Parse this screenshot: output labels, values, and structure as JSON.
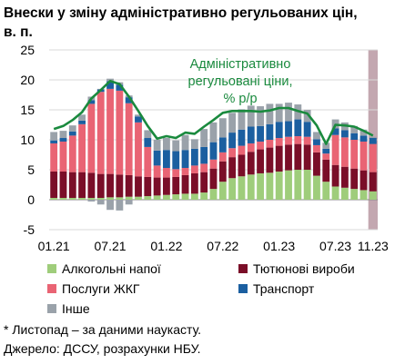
{
  "title_line1": "Внески у зміну адміністративно регульованих цін,",
  "title_line2": "в. п.",
  "footnote1": "* Листопад – за даними наукасту.",
  "footnote2": "Джерело: ДССУ, розрахунки НБУ.",
  "chart_data": {
    "type": "bar",
    "title": "Внески у зміну адміністративно регульованих цін, в. п.",
    "ylim": [
      -5,
      25
    ],
    "yticks": [
      -5,
      0,
      5,
      10,
      15,
      20,
      25
    ],
    "x": [
      "01.21",
      "02.21",
      "03.21",
      "04.21",
      "05.21",
      "06.21",
      "07.21",
      "08.21",
      "09.21",
      "10.21",
      "11.21",
      "12.21",
      "01.22",
      "02.22",
      "03.22",
      "04.22",
      "05.22",
      "06.22",
      "07.22",
      "08.22",
      "09.22",
      "10.22",
      "11.22",
      "12.22",
      "01.23",
      "02.23",
      "03.23",
      "04.23",
      "05.23",
      "06.23",
      "07.23",
      "08.23",
      "09.23",
      "10.23",
      "11.23"
    ],
    "xticklabels": [
      {
        "index": 0,
        "label": "01.21"
      },
      {
        "index": 6,
        "label": "07.21"
      },
      {
        "index": 12,
        "label": "01.22"
      },
      {
        "index": 18,
        "label": "07.22"
      },
      {
        "index": 24,
        "label": "01.23"
      },
      {
        "index": 30,
        "label": "07.23"
      },
      {
        "index": 34,
        "label": "11.23"
      }
    ],
    "nowcast_index": 34,
    "annotation": [
      "Адміністративно",
      "регульовані ціни,",
      "% р/р"
    ],
    "series": [
      {
        "name": "Алкогольні напої",
        "color": "#9fcd7b",
        "values": [
          0.3,
          0.3,
          0.3,
          0.3,
          0.3,
          0.3,
          0.4,
          0.4,
          0.5,
          0.5,
          0.6,
          0.7,
          0.8,
          0.9,
          1.0,
          1.0,
          1.2,
          1.8,
          3.0,
          3.6,
          3.9,
          4.2,
          4.4,
          4.5,
          4.7,
          4.9,
          5.0,
          5.0,
          4.0,
          3.0,
          2.2,
          2.0,
          1.8,
          1.6,
          1.4
        ]
      },
      {
        "name": "Тютюнові вироби",
        "color": "#7a0e28",
        "values": [
          4.4,
          4.4,
          4.3,
          4.3,
          4.2,
          4.0,
          3.9,
          3.8,
          3.6,
          3.4,
          3.2,
          3.0,
          2.9,
          2.9,
          3.1,
          3.4,
          3.4,
          3.4,
          3.4,
          3.5,
          3.6,
          3.8,
          4.0,
          4.2,
          4.3,
          4.3,
          4.3,
          4.2,
          3.9,
          3.7,
          3.6,
          3.5,
          3.4,
          3.3,
          3.2
        ]
      },
      {
        "name": "Послуги ЖКГ",
        "color": "#e96474",
        "values": [
          4.7,
          5.0,
          6.1,
          8.0,
          11.5,
          13.7,
          14.2,
          14.0,
          12.0,
          9.0,
          5.0,
          2.0,
          1.6,
          1.3,
          1.2,
          1.3,
          1.4,
          1.5,
          1.5,
          1.5,
          1.5,
          1.4,
          1.3,
          1.3,
          1.3,
          1.3,
          1.3,
          1.3,
          1.2,
          1.0,
          5.0,
          4.9,
          4.8,
          4.8,
          4.7
        ]
      },
      {
        "name": "Транспорт",
        "color": "#1b5fa0",
        "values": [
          0.5,
          0.6,
          0.7,
          0.6,
          0.6,
          0.4,
          1.3,
          1.0,
          1.0,
          1.0,
          1.5,
          2.5,
          3.0,
          3.0,
          3.0,
          2.8,
          2.8,
          2.9,
          2.5,
          2.6,
          2.7,
          2.8,
          2.6,
          2.6,
          2.7,
          2.6,
          2.8,
          2.5,
          1.0,
          0.8,
          1.1,
          1.2,
          1.1,
          1.0,
          1.0
        ]
      },
      {
        "name": "Інше",
        "color": "#9aa2aa",
        "values": [
          1.4,
          1.2,
          1.0,
          1.0,
          0.6,
          0.1,
          0.4,
          0.4,
          0.3,
          0.3,
          1.3,
          1.8,
          2.0,
          1.8,
          2.5,
          1.6,
          3.0,
          3.3,
          3.2,
          3.3,
          3.4,
          3.5,
          3.3,
          3.4,
          3.0,
          3.1,
          2.5,
          2.0,
          1.2,
          1.0,
          1.5,
          1.3,
          1.2,
          1.0,
          0.2
        ]
      }
    ],
    "negative_other": [
      0,
      0,
      0,
      0,
      -0.3,
      -0.8,
      -1.7,
      -1.8,
      -0.8,
      0,
      0,
      0,
      0,
      0,
      0,
      0,
      0,
      0,
      0,
      0,
      0,
      0,
      0,
      0,
      0,
      0,
      0,
      0,
      0,
      0,
      0,
      0,
      0,
      0,
      0
    ],
    "line": {
      "name": "Адміністративно регульовані ціни, % р/р",
      "color": "#1a8a3e",
      "values": [
        11.8,
        12.3,
        13.3,
        14.6,
        16.9,
        18.3,
        19.8,
        19.3,
        17.2,
        14.8,
        12.3,
        10.2,
        10.6,
        10.3,
        11.2,
        11.0,
        12.2,
        13.3,
        14.5,
        14.8,
        14.8,
        14.8,
        14.7,
        14.9,
        15.3,
        15.3,
        14.8,
        14.4,
        12.4,
        9.3,
        12.5,
        12.4,
        12.2,
        11.5,
        10.7
      ]
    }
  }
}
